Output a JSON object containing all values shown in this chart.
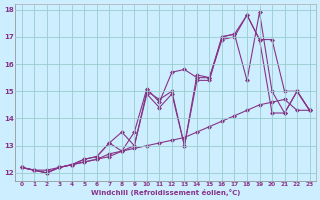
{
  "xlabel": "Windchill (Refroidissement éolien,°C)",
  "bg_color": "#cceeff",
  "grid_color": "#aadddd",
  "line_color": "#883388",
  "x_ticks": [
    0,
    1,
    2,
    3,
    4,
    5,
    6,
    7,
    8,
    9,
    10,
    11,
    12,
    13,
    14,
    15,
    16,
    17,
    18,
    19,
    20,
    21,
    22,
    23
  ],
  "ylim": [
    11.7,
    18.2
  ],
  "xlim": [
    -0.5,
    23.5
  ],
  "yticks": [
    12,
    13,
    14,
    15,
    16,
    17,
    18
  ],
  "lines": [
    [
      12.2,
      12.1,
      12.1,
      12.2,
      12.3,
      12.4,
      12.5,
      12.6,
      12.8,
      12.9,
      13.0,
      13.1,
      13.2,
      13.3,
      13.5,
      13.7,
      13.9,
      14.1,
      14.3,
      14.5,
      14.6,
      14.7,
      14.3,
      14.3
    ],
    [
      12.2,
      12.1,
      12.0,
      12.2,
      12.3,
      12.4,
      12.5,
      12.7,
      12.8,
      13.0,
      15.0,
      14.7,
      15.0,
      13.0,
      15.6,
      15.5,
      16.9,
      17.0,
      17.8,
      16.9,
      16.9,
      15.0,
      15.0,
      14.3
    ],
    [
      12.2,
      12.1,
      12.0,
      12.2,
      12.3,
      12.5,
      12.6,
      13.1,
      12.8,
      13.5,
      15.1,
      14.6,
      15.7,
      15.8,
      15.5,
      15.5,
      17.0,
      17.1,
      15.4,
      17.9,
      15.0,
      14.2,
      15.0,
      14.3
    ],
    [
      12.2,
      12.1,
      12.0,
      12.2,
      12.3,
      12.5,
      12.6,
      13.1,
      13.5,
      13.0,
      14.9,
      14.4,
      14.9,
      13.0,
      15.4,
      15.4,
      17.0,
      17.1,
      17.8,
      16.9,
      14.2,
      14.2,
      15.0,
      14.3
    ]
  ]
}
